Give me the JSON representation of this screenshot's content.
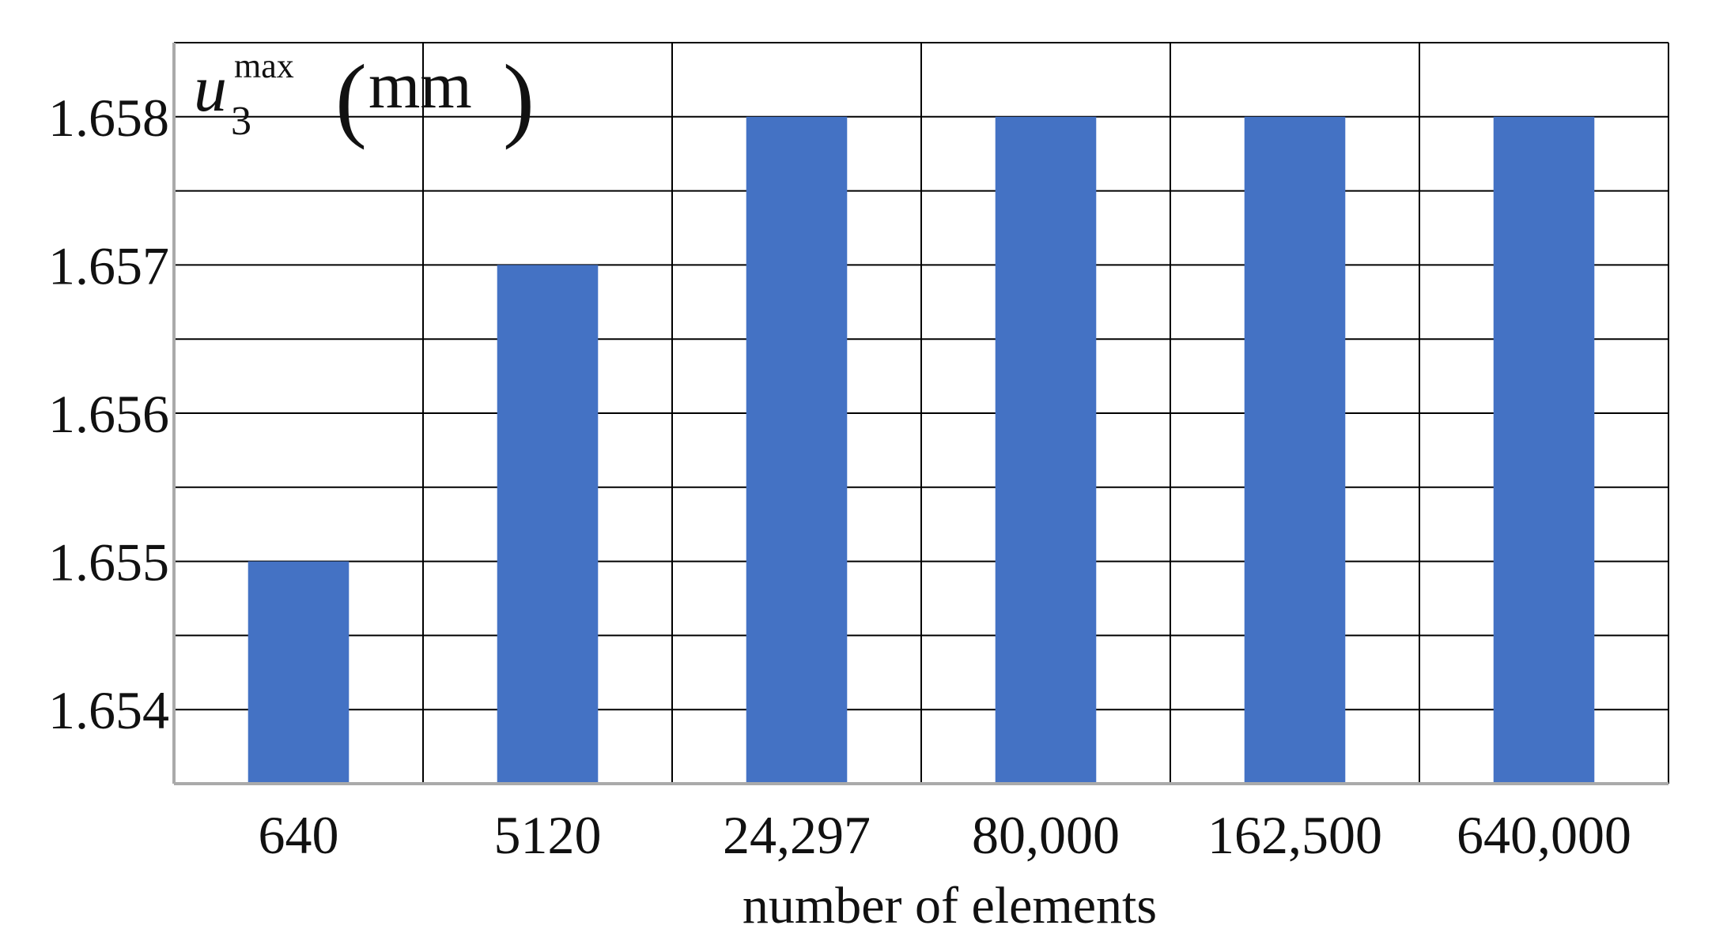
{
  "chart_data": {
    "type": "bar",
    "categories": [
      "640",
      "5120",
      "24,297",
      "80,000",
      "162,500",
      "640,000"
    ],
    "values": [
      1.655,
      1.657,
      1.658,
      1.658,
      1.658,
      1.658
    ],
    "xlabel": "number of elements",
    "ylabel": {
      "symbol": "u",
      "subscript": "3",
      "superscript": "max",
      "open_paren": "(",
      "unit": "mm",
      "close_paren": ")"
    },
    "ylim": [
      1.6535,
      1.6585
    ],
    "yticks": [
      1.654,
      1.655,
      1.656,
      1.657,
      1.658
    ],
    "ytick_labels": [
      "1.654",
      "1.655",
      "1.656",
      "1.657",
      "1.658"
    ],
    "grid": true,
    "bar_color": "#4472C4",
    "grid_color": "#000000"
  }
}
